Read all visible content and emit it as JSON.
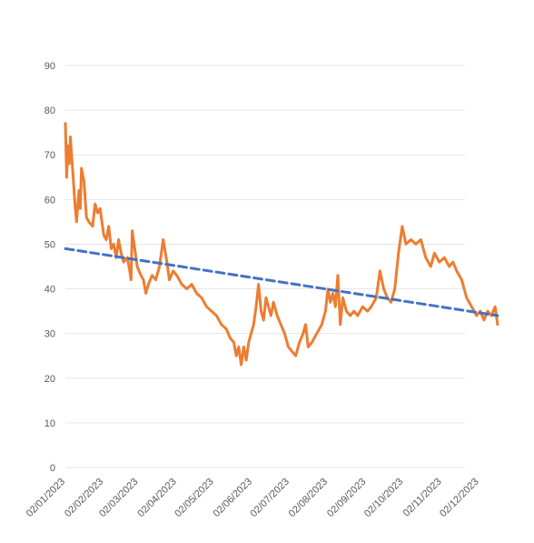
{
  "chart_data": {
    "type": "line",
    "title": "",
    "xlabel": "",
    "ylabel": "",
    "ylim": [
      0,
      90
    ],
    "yticks": [
      0,
      10,
      20,
      30,
      40,
      50,
      60,
      70,
      80,
      90
    ],
    "grid": true,
    "legend": "none",
    "xlim": [
      "2023-01-02",
      "2023-12-31"
    ],
    "xtick_labels": [
      "02/01/2023",
      "02/02/2023",
      "02/03/2023",
      "02/04/2023",
      "02/05/2023",
      "02/06/2023",
      "02/07/2023",
      "02/08/2023",
      "02/09/2023",
      "02/10/2023",
      "02/11/2023",
      "02/12/2023"
    ],
    "xtick_dates": [
      "2023-01-02",
      "2023-02-02",
      "2023-03-02",
      "2023-04-02",
      "2023-05-02",
      "2023-06-02",
      "2023-07-02",
      "2023-08-02",
      "2023-09-02",
      "2023-10-02",
      "2023-11-02",
      "2023-12-02"
    ],
    "series": [
      {
        "color": "#ed7d31",
        "style": "solid",
        "points": [
          [
            "2023-01-02",
            77
          ],
          [
            "2023-01-03",
            65
          ],
          [
            "2023-01-04",
            72
          ],
          [
            "2023-01-05",
            68
          ],
          [
            "2023-01-06",
            74
          ],
          [
            "2023-01-08",
            66
          ],
          [
            "2023-01-10",
            58
          ],
          [
            "2023-01-11",
            55
          ],
          [
            "2023-01-13",
            62
          ],
          [
            "2023-01-14",
            58
          ],
          [
            "2023-01-15",
            67
          ],
          [
            "2023-01-17",
            64
          ],
          [
            "2023-01-19",
            56
          ],
          [
            "2023-01-21",
            55
          ],
          [
            "2023-01-24",
            54
          ],
          [
            "2023-01-26",
            59
          ],
          [
            "2023-01-28",
            57
          ],
          [
            "2023-01-30",
            58
          ],
          [
            "2023-02-02",
            52
          ],
          [
            "2023-02-04",
            51
          ],
          [
            "2023-02-06",
            54
          ],
          [
            "2023-02-08",
            49
          ],
          [
            "2023-02-10",
            50
          ],
          [
            "2023-02-12",
            47
          ],
          [
            "2023-02-14",
            51
          ],
          [
            "2023-02-16",
            48
          ],
          [
            "2023-02-18",
            46
          ],
          [
            "2023-02-21",
            47
          ],
          [
            "2023-02-23",
            44
          ],
          [
            "2023-02-24",
            42
          ],
          [
            "2023-02-25",
            53
          ],
          [
            "2023-02-27",
            49
          ],
          [
            "2023-03-01",
            45
          ],
          [
            "2023-03-04",
            43
          ],
          [
            "2023-03-06",
            42
          ],
          [
            "2023-03-08",
            39
          ],
          [
            "2023-03-10",
            41
          ],
          [
            "2023-03-13",
            43
          ],
          [
            "2023-03-16",
            42
          ],
          [
            "2023-03-19",
            45
          ],
          [
            "2023-03-22",
            51
          ],
          [
            "2023-03-25",
            46
          ],
          [
            "2023-03-27",
            42
          ],
          [
            "2023-03-30",
            44
          ],
          [
            "2023-04-02",
            43
          ],
          [
            "2023-04-06",
            41
          ],
          [
            "2023-04-10",
            40
          ],
          [
            "2023-04-14",
            41
          ],
          [
            "2023-04-18",
            39
          ],
          [
            "2023-04-22",
            38
          ],
          [
            "2023-04-26",
            36
          ],
          [
            "2023-04-30",
            35
          ],
          [
            "2023-05-04",
            34
          ],
          [
            "2023-05-08",
            32
          ],
          [
            "2023-05-12",
            31
          ],
          [
            "2023-05-15",
            29
          ],
          [
            "2023-05-18",
            28
          ],
          [
            "2023-05-20",
            25
          ],
          [
            "2023-05-22",
            27
          ],
          [
            "2023-05-24",
            23
          ],
          [
            "2023-05-26",
            27
          ],
          [
            "2023-05-28",
            24
          ],
          [
            "2023-05-30",
            28
          ],
          [
            "2023-06-01",
            30
          ],
          [
            "2023-06-03",
            32
          ],
          [
            "2023-06-05",
            36
          ],
          [
            "2023-06-07",
            41
          ],
          [
            "2023-06-09",
            35
          ],
          [
            "2023-06-11",
            33
          ],
          [
            "2023-06-13",
            38
          ],
          [
            "2023-06-15",
            36
          ],
          [
            "2023-06-17",
            34
          ],
          [
            "2023-06-19",
            37
          ],
          [
            "2023-06-22",
            34
          ],
          [
            "2023-06-25",
            32
          ],
          [
            "2023-06-28",
            30
          ],
          [
            "2023-07-01",
            27
          ],
          [
            "2023-07-04",
            26
          ],
          [
            "2023-07-07",
            25
          ],
          [
            "2023-07-10",
            28
          ],
          [
            "2023-07-13",
            30
          ],
          [
            "2023-07-15",
            32
          ],
          [
            "2023-07-17",
            27
          ],
          [
            "2023-07-20",
            28
          ],
          [
            "2023-07-24",
            30
          ],
          [
            "2023-07-28",
            32
          ],
          [
            "2023-07-31",
            35
          ],
          [
            "2023-08-02",
            40
          ],
          [
            "2023-08-04",
            37
          ],
          [
            "2023-08-06",
            39
          ],
          [
            "2023-08-08",
            36
          ],
          [
            "2023-08-10",
            43
          ],
          [
            "2023-08-12",
            32
          ],
          [
            "2023-08-14",
            38
          ],
          [
            "2023-08-17",
            35
          ],
          [
            "2023-08-20",
            34
          ],
          [
            "2023-08-23",
            35
          ],
          [
            "2023-08-26",
            34
          ],
          [
            "2023-08-30",
            36
          ],
          [
            "2023-09-03",
            35
          ],
          [
            "2023-09-06",
            36
          ],
          [
            "2023-09-10",
            38
          ],
          [
            "2023-09-13",
            44
          ],
          [
            "2023-09-16",
            40
          ],
          [
            "2023-09-19",
            38
          ],
          [
            "2023-09-22",
            37
          ],
          [
            "2023-09-25",
            40
          ],
          [
            "2023-09-28",
            48
          ],
          [
            "2023-09-30",
            52
          ],
          [
            "2023-10-01",
            54
          ],
          [
            "2023-10-04",
            50
          ],
          [
            "2023-10-08",
            51
          ],
          [
            "2023-10-12",
            50
          ],
          [
            "2023-10-16",
            51
          ],
          [
            "2023-10-20",
            47
          ],
          [
            "2023-10-24",
            45
          ],
          [
            "2023-10-27",
            48
          ],
          [
            "2023-10-31",
            46
          ],
          [
            "2023-11-04",
            47
          ],
          [
            "2023-11-08",
            45
          ],
          [
            "2023-11-11",
            46
          ],
          [
            "2023-11-14",
            44
          ],
          [
            "2023-11-18",
            42
          ],
          [
            "2023-11-22",
            38
          ],
          [
            "2023-11-26",
            36
          ],
          [
            "2023-11-30",
            34
          ],
          [
            "2023-12-03",
            35
          ],
          [
            "2023-12-06",
            33
          ],
          [
            "2023-12-09",
            35
          ],
          [
            "2023-12-12",
            34
          ],
          [
            "2023-12-15",
            36
          ],
          [
            "2023-12-17",
            32
          ]
        ]
      },
      {
        "color": "#4472c4",
        "style": "dashed",
        "points": [
          [
            "2023-01-02",
            49
          ],
          [
            "2023-12-17",
            34
          ]
        ]
      }
    ]
  }
}
